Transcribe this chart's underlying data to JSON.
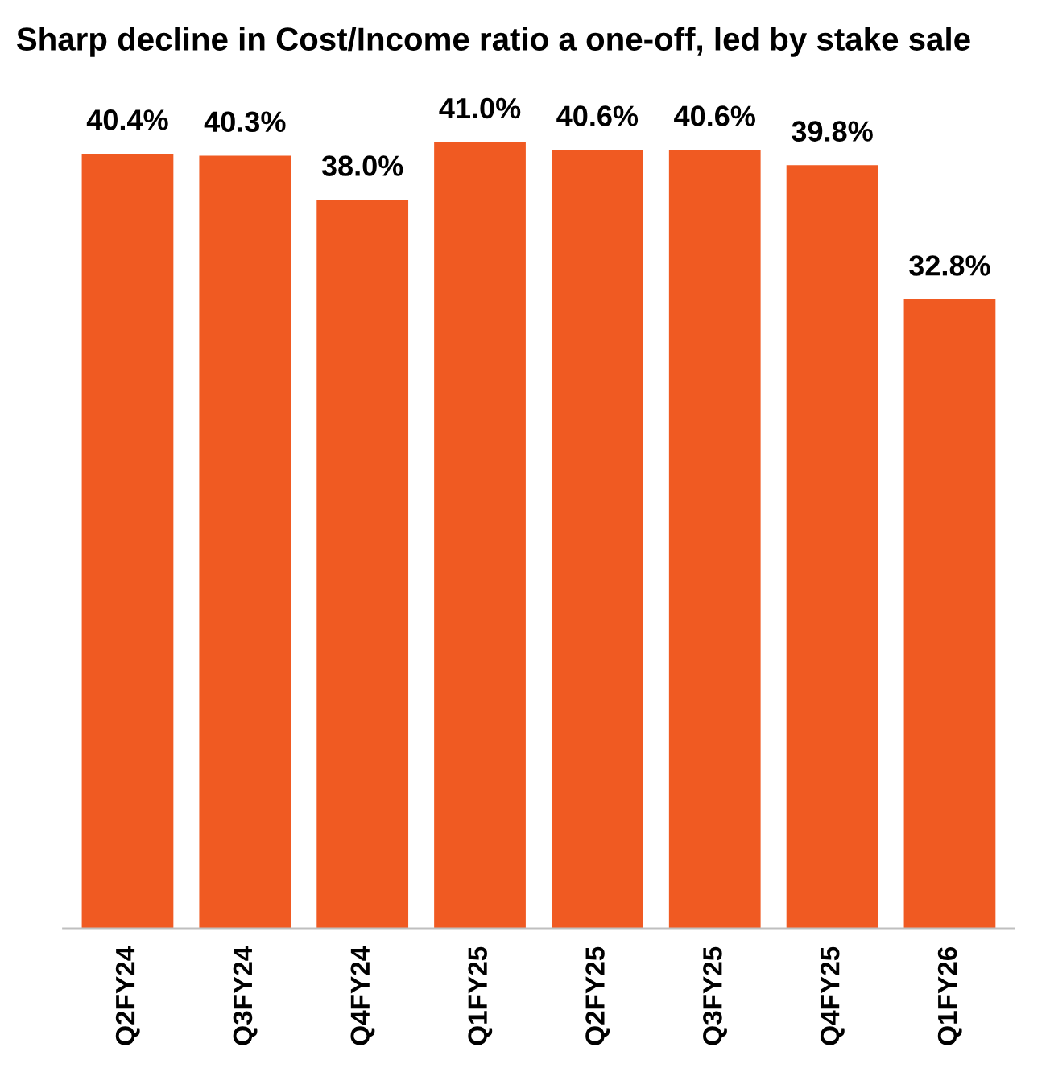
{
  "chart_data": {
    "type": "bar",
    "title": "Sharp decline in Cost/Income ratio a one-off, led by stake sale",
    "categories": [
      "Q2FY24",
      "Q3FY24",
      "Q4FY24",
      "Q1FY25",
      "Q2FY25",
      "Q3FY25",
      "Q4FY25",
      "Q1FY26"
    ],
    "values": [
      40.4,
      40.3,
      38.0,
      41.0,
      40.6,
      40.6,
      39.8,
      32.8
    ],
    "value_labels": [
      "40.4%",
      "40.3%",
      "38.0%",
      "41.0%",
      "40.6%",
      "40.6%",
      "39.8%",
      "32.8%"
    ],
    "color": "#f05a22",
    "tick_labels": "x",
    "grid": false
  }
}
